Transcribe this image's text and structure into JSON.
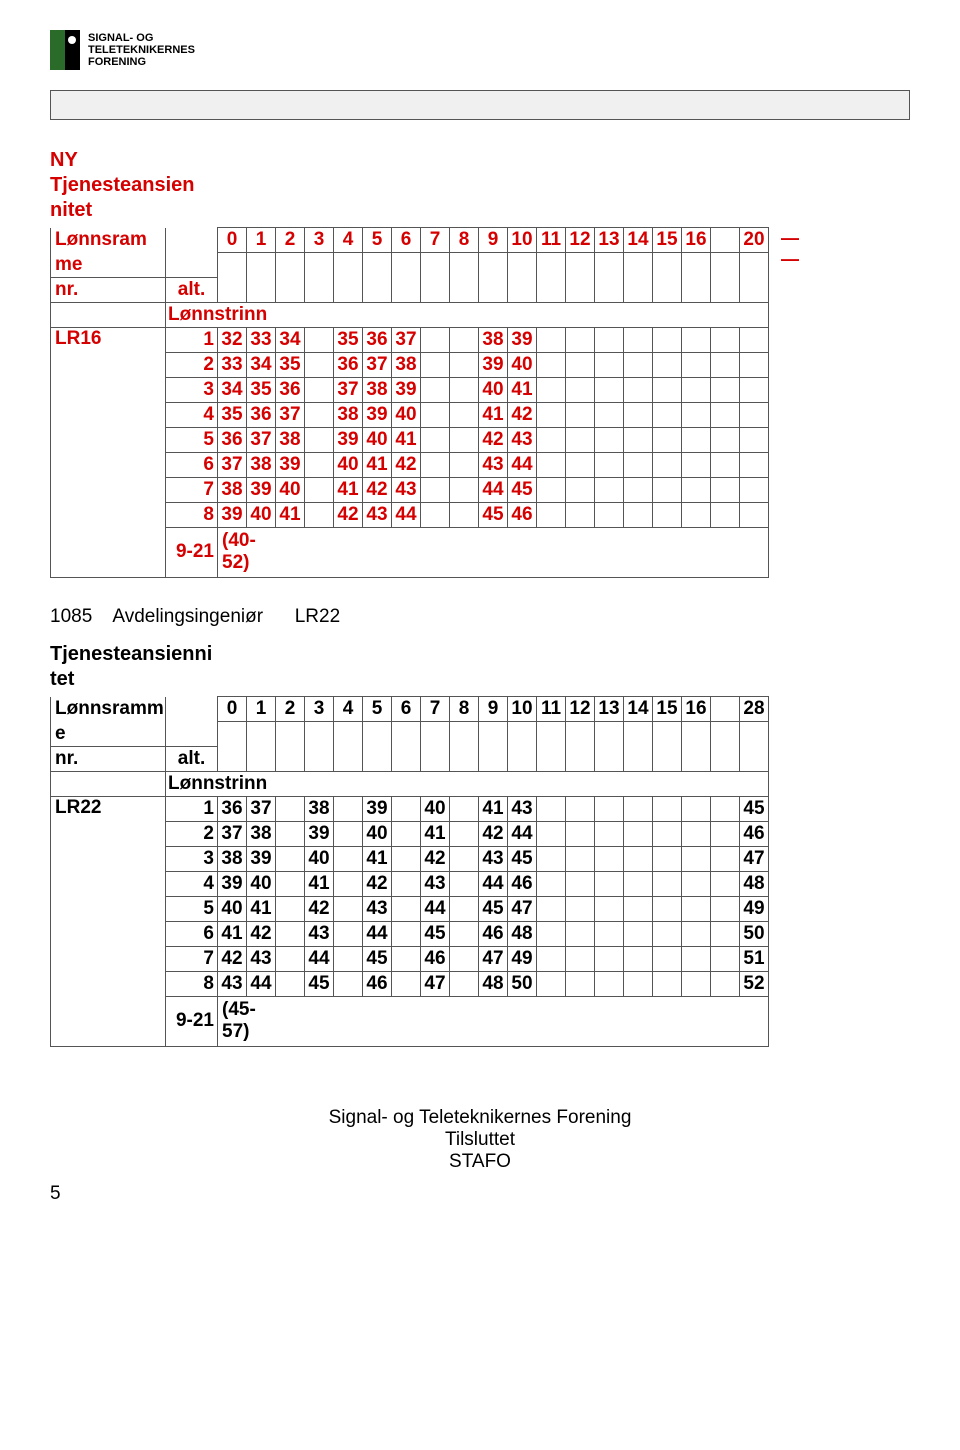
{
  "logo": {
    "line1": "SIGNAL- OG",
    "line2": "TELETEKNIKERNES",
    "line3": "FORENING"
  },
  "table1": {
    "color": "#d50000",
    "title_lines": [
      "NY",
      "Tjenesteansien",
      "nitet"
    ],
    "left_labels": {
      "ramme": "Lønnsram",
      "me": "me",
      "nr": "nr.",
      "alt": "alt.",
      "trinn": "Lønnstrinn"
    },
    "code": "LR16",
    "header_cols": [
      "0",
      "1",
      "2",
      "3",
      "4",
      "5",
      "6",
      "7",
      "8",
      "9",
      "10",
      "11",
      "12",
      "13",
      "14",
      "15",
      "16",
      "",
      "20"
    ],
    "row_nums": [
      "1",
      "2",
      "3",
      "4",
      "5",
      "6",
      "7",
      "8"
    ],
    "rows": [
      [
        "32",
        "33",
        "34",
        "",
        "35",
        "36",
        "37",
        "",
        "",
        "38",
        "39",
        "",
        "",
        "",
        "",
        "",
        "",
        "",
        ""
      ],
      [
        "33",
        "34",
        "35",
        "",
        "36",
        "37",
        "38",
        "",
        "",
        "39",
        "40",
        "",
        "",
        "",
        "",
        "",
        "",
        "",
        ""
      ],
      [
        "34",
        "35",
        "36",
        "",
        "37",
        "38",
        "39",
        "",
        "",
        "40",
        "41",
        "",
        "",
        "",
        "",
        "",
        "",
        "",
        ""
      ],
      [
        "35",
        "36",
        "37",
        "",
        "38",
        "39",
        "40",
        "",
        "",
        "41",
        "42",
        "",
        "",
        "",
        "",
        "",
        "",
        "",
        ""
      ],
      [
        "36",
        "37",
        "38",
        "",
        "39",
        "40",
        "41",
        "",
        "",
        "42",
        "43",
        "",
        "",
        "",
        "",
        "",
        "",
        "",
        ""
      ],
      [
        "37",
        "38",
        "39",
        "",
        "40",
        "41",
        "42",
        "",
        "",
        "43",
        "44",
        "",
        "",
        "",
        "",
        "",
        "",
        "",
        ""
      ],
      [
        "38",
        "39",
        "40",
        "",
        "41",
        "42",
        "43",
        "",
        "",
        "44",
        "45",
        "",
        "",
        "",
        "",
        "",
        "",
        "",
        ""
      ],
      [
        "39",
        "40",
        "41",
        "",
        "42",
        "43",
        "44",
        "",
        "",
        "45",
        "46",
        "",
        "",
        "",
        "",
        "",
        "",
        "",
        ""
      ]
    ],
    "last_range": "9-21",
    "last_note": "(40-\n52)",
    "dash": "—"
  },
  "mid_line": {
    "code": "1085",
    "title": "Avdelingsingeniør",
    "lr": "LR22"
  },
  "table2": {
    "color": "#000000",
    "title_lines": [
      "Tjenesteansienni",
      "tet"
    ],
    "left_labels": {
      "ramme": "Lønnsramm",
      "me": "e",
      "nr": "nr.",
      "alt": "alt.",
      "trinn": "Lønnstrinn"
    },
    "code": "LR22",
    "header_cols": [
      "0",
      "1",
      "2",
      "3",
      "4",
      "5",
      "6",
      "7",
      "8",
      "9",
      "10",
      "11",
      "12",
      "13",
      "14",
      "15",
      "16",
      "",
      "28"
    ],
    "row_nums": [
      "1",
      "2",
      "3",
      "4",
      "5",
      "6",
      "7",
      "8"
    ],
    "rows": [
      [
        "36",
        "37",
        "",
        "38",
        "",
        "39",
        "",
        "40",
        "",
        "41",
        "43",
        "",
        "",
        "",
        "",
        "",
        "",
        "",
        "45"
      ],
      [
        "37",
        "38",
        "",
        "39",
        "",
        "40",
        "",
        "41",
        "",
        "42",
        "44",
        "",
        "",
        "",
        "",
        "",
        "",
        "",
        "46"
      ],
      [
        "38",
        "39",
        "",
        "40",
        "",
        "41",
        "",
        "42",
        "",
        "43",
        "45",
        "",
        "",
        "",
        "",
        "",
        "",
        "",
        "47"
      ],
      [
        "39",
        "40",
        "",
        "41",
        "",
        "42",
        "",
        "43",
        "",
        "44",
        "46",
        "",
        "",
        "",
        "",
        "",
        "",
        "",
        "48"
      ],
      [
        "40",
        "41",
        "",
        "42",
        "",
        "43",
        "",
        "44",
        "",
        "45",
        "47",
        "",
        "",
        "",
        "",
        "",
        "",
        "",
        "49"
      ],
      [
        "41",
        "42",
        "",
        "43",
        "",
        "44",
        "",
        "45",
        "",
        "46",
        "48",
        "",
        "",
        "",
        "",
        "",
        "",
        "",
        "50"
      ],
      [
        "42",
        "43",
        "",
        "44",
        "",
        "45",
        "",
        "46",
        "",
        "47",
        "49",
        "",
        "",
        "",
        "",
        "",
        "",
        "",
        "51"
      ],
      [
        "43",
        "44",
        "",
        "45",
        "",
        "46",
        "",
        "47",
        "",
        "48",
        "50",
        "",
        "",
        "",
        "",
        "",
        "",
        "",
        "52"
      ]
    ],
    "last_range": "9-21",
    "last_note": "(45-\n57)"
  },
  "footer": {
    "l1": "Signal- og Teleteknikernes Forening",
    "l2": "Tilsluttet",
    "l3": "STAFO"
  },
  "page_number": "5"
}
